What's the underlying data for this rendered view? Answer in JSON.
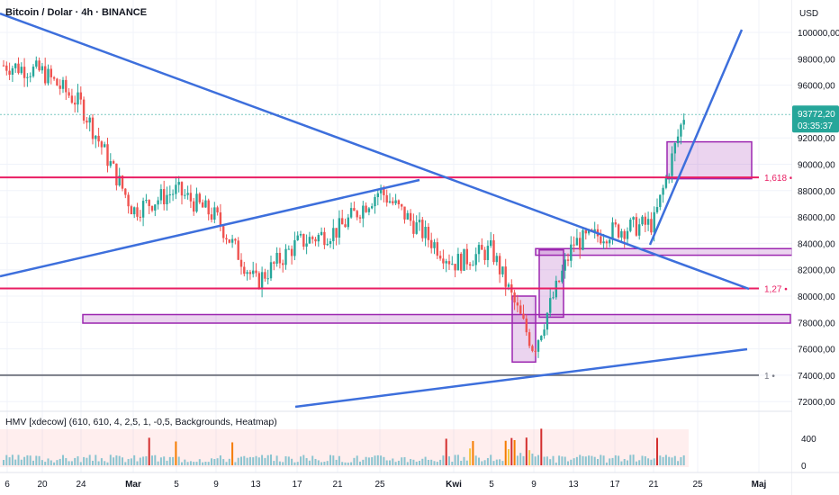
{
  "header": {
    "symbol_title": "Bitcoin / Dolar · 4h · BINANCE",
    "currency": "USD"
  },
  "price_axis": {
    "ticks": [
      "100000,00",
      "98000,00",
      "96000,00",
      "92000,00",
      "90000,00",
      "88000,00",
      "86000,00",
      "84000,00",
      "82000,00",
      "80000,00",
      "78000,00",
      "76000,00",
      "74000,00",
      "72000,00"
    ],
    "current_price": "93772,20",
    "countdown": "03:35:37"
  },
  "time_axis": {
    "labels": [
      "6",
      "20",
      "24",
      "Mar",
      "5",
      "9",
      "13",
      "17",
      "21",
      "25",
      "Kwi",
      "5",
      "9",
      "13",
      "17",
      "21",
      "25",
      "Maj"
    ]
  },
  "fib_levels": [
    {
      "label": "1,618",
      "price": 89000
    },
    {
      "label": "1,27",
      "price": 80580
    },
    {
      "label": "1",
      "price": 74000
    }
  ],
  "indicator": {
    "label": "HMV [xdecow] (610, 610, 4, 2,5, 1, -0,5, Backgrounds, Heatmap)",
    "ticks": [
      "400",
      "0"
    ]
  },
  "chart_data": {
    "type": "candlestick",
    "title": "Bitcoin / Dolar · 4h · BINANCE",
    "ylabel": "USD",
    "ylim": [
      72000,
      101000
    ],
    "last_price": 93772.2,
    "key_path": [
      {
        "x": "6",
        "close": 97500
      },
      {
        "x": "20",
        "close": 97000
      },
      {
        "x": "24",
        "close": 94500
      },
      {
        "x": "Mar",
        "close": 86500
      },
      {
        "x": "5",
        "close": 88000
      },
      {
        "x": "9",
        "close": 86000
      },
      {
        "x": "13",
        "close": 81000
      },
      {
        "x": "17",
        "close": 84000
      },
      {
        "x": "21",
        "close": 85000
      },
      {
        "x": "25",
        "close": 88000
      },
      {
        "x": "Kwi",
        "close": 82500
      },
      {
        "x": "5",
        "close": 83500
      },
      {
        "x": "9",
        "close": 76000
      },
      {
        "x": "13",
        "close": 84000
      },
      {
        "x": "17",
        "close": 85000
      },
      {
        "x": "21",
        "close": 85500
      },
      {
        "x": "21+",
        "close": 93772.2
      }
    ],
    "volume_ylim": [
      0,
      500
    ]
  }
}
